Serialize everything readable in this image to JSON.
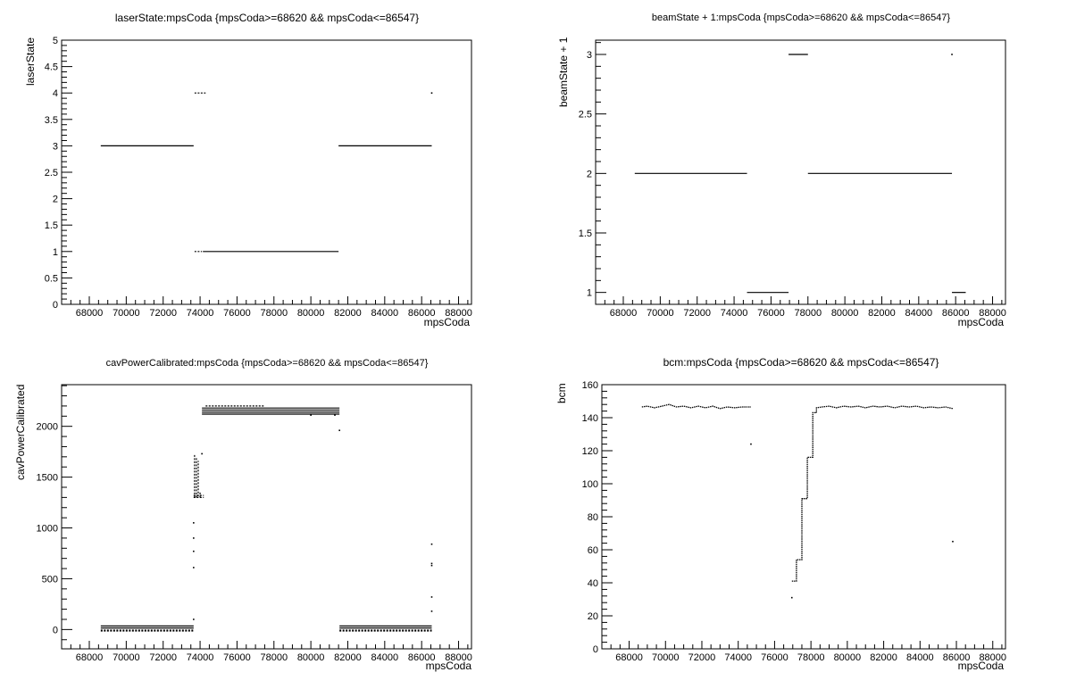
{
  "chart_data": [
    {
      "type": "scatter",
      "title": "laserState:mpsCoda {mpsCoda>=68620 && mpsCoda<=86547}",
      "xlabel": "mpsCoda",
      "ylabel": "laserState",
      "xlim": [
        66500,
        88700
      ],
      "ylim": [
        0,
        5
      ],
      "x_ticks": [
        68000,
        70000,
        72000,
        74000,
        76000,
        78000,
        80000,
        82000,
        84000,
        86000,
        88000
      ],
      "y_ticks": [
        0,
        0.5,
        1,
        1.5,
        2,
        2.5,
        3,
        3.5,
        4,
        4.5,
        5
      ],
      "grid": false,
      "segments": [
        {
          "x0": 68620,
          "x1": 73650,
          "y": 3
        },
        {
          "x0": 73700,
          "x1": 74300,
          "y": 4,
          "dashed": true
        },
        {
          "x0": 73700,
          "x1": 74100,
          "y": 1,
          "dashed": true
        },
        {
          "x0": 74150,
          "x1": 81500,
          "y": 1
        },
        {
          "x0": 81500,
          "x1": 86547,
          "y": 3
        }
      ],
      "points": [
        {
          "x": 86547,
          "y": 4
        }
      ]
    },
    {
      "type": "scatter",
      "title": "beamState + 1:mpsCoda {mpsCoda>=68620 && mpsCoda<=86547}",
      "xlabel": "mpsCoda",
      "ylabel": "beamState + 1",
      "xlim": [
        66500,
        88700
      ],
      "ylim": [
        0.9,
        3.12
      ],
      "x_ticks": [
        68000,
        70000,
        72000,
        74000,
        76000,
        78000,
        80000,
        82000,
        84000,
        86000,
        88000
      ],
      "y_ticks": [
        1,
        1.5,
        2,
        2.5,
        3
      ],
      "grid": false,
      "segments": [
        {
          "x0": 68620,
          "x1": 74700,
          "y": 2
        },
        {
          "x0": 74700,
          "x1": 76950,
          "y": 1
        },
        {
          "x0": 76950,
          "x1": 78000,
          "y": 3
        },
        {
          "x0": 78000,
          "x1": 85800,
          "y": 2
        },
        {
          "x0": 85800,
          "x1": 86547,
          "y": 1
        }
      ],
      "points": [
        {
          "x": 85800,
          "y": 3
        }
      ]
    },
    {
      "type": "scatter",
      "title": "cavPowerCalibrated:mpsCoda {mpsCoda>=68620 && mpsCoda<=86547}",
      "xlabel": "mpsCoda",
      "ylabel": "cavPowerCalibrated",
      "xlim": [
        66500,
        88700
      ],
      "ylim": [
        -190,
        2410
      ],
      "x_ticks": [
        68000,
        70000,
        72000,
        74000,
        76000,
        78000,
        80000,
        82000,
        84000,
        86000,
        88000
      ],
      "y_ticks": [
        0,
        500,
        1000,
        1500,
        2000
      ],
      "grid": false,
      "segments": [
        {
          "x0": 68620,
          "x1": 73650,
          "y": 35
        },
        {
          "x0": 68620,
          "x1": 73650,
          "y": 15
        },
        {
          "x0": 68620,
          "x1": 73650,
          "y": -5,
          "dashed": true
        },
        {
          "x0": 68620,
          "x1": 73650,
          "y": -15,
          "dashed": true
        },
        {
          "x0": 74100,
          "x1": 81550,
          "y": 2180
        },
        {
          "x0": 74100,
          "x1": 81550,
          "y": 2160
        },
        {
          "x0": 74100,
          "x1": 81550,
          "y": 2140
        },
        {
          "x0": 74100,
          "x1": 81550,
          "y": 2120
        },
        {
          "x0": 74300,
          "x1": 77500,
          "y": 2200,
          "dashed": true
        },
        {
          "x0": 81550,
          "x1": 86547,
          "y": 35
        },
        {
          "x0": 81550,
          "x1": 86547,
          "y": 15
        },
        {
          "x0": 81550,
          "x1": 86547,
          "y": -5,
          "dashed": true
        },
        {
          "x0": 81550,
          "x1": 86547,
          "y": -15,
          "dashed": true
        },
        {
          "x0": 73700,
          "x1": 73700,
          "y0": 1300,
          "y1": 1720,
          "dashed": true
        },
        {
          "x0": 73800,
          "x1": 73800,
          "y0": 1300,
          "y1": 1700,
          "dashed": true
        },
        {
          "x0": 73900,
          "x1": 73900,
          "y0": 1310,
          "y1": 1660,
          "dashed": true
        },
        {
          "x0": 74000,
          "x1": 74000,
          "y0": 1300,
          "y1": 1360,
          "dashed": true
        },
        {
          "x0": 73650,
          "x1": 74200,
          "y": 1320,
          "dashed": true
        },
        {
          "x0": 73650,
          "x1": 74200,
          "y": 1300,
          "dashed": true
        }
      ],
      "points": [
        {
          "x": 73650,
          "y": 1050
        },
        {
          "x": 73650,
          "y": 900
        },
        {
          "x": 73650,
          "y": 770
        },
        {
          "x": 73650,
          "y": 610
        },
        {
          "x": 73650,
          "y": 100
        },
        {
          "x": 74100,
          "y": 1730
        },
        {
          "x": 81550,
          "y": 1960
        },
        {
          "x": 80000,
          "y": 2110
        },
        {
          "x": 81300,
          "y": 2110
        },
        {
          "x": 86547,
          "y": 840
        },
        {
          "x": 86547,
          "y": 650
        },
        {
          "x": 86547,
          "y": 630
        },
        {
          "x": 86547,
          "y": 320
        },
        {
          "x": 86547,
          "y": 180
        }
      ]
    },
    {
      "type": "scatter",
      "title": "bcm:mpsCoda {mpsCoda>=68620 && mpsCoda<=86547}",
      "xlabel": "mpsCoda",
      "ylabel": "bcm",
      "xlim": [
        66500,
        88700
      ],
      "ylim": [
        0,
        160
      ],
      "x_ticks": [
        68000,
        70000,
        72000,
        74000,
        76000,
        78000,
        80000,
        82000,
        84000,
        86000,
        88000
      ],
      "y_ticks": [
        0,
        20,
        40,
        60,
        80,
        100,
        120,
        140,
        160
      ],
      "grid": false,
      "series": [
        {
          "x": [
            68700,
            69000,
            69400,
            69800,
            70200,
            70600,
            71000,
            71400,
            71800,
            72200,
            72600,
            73000,
            73400,
            73800,
            74200,
            74700
          ],
          "y": [
            146.5,
            147,
            146,
            147,
            148,
            146.5,
            147,
            146,
            147,
            146,
            147,
            145.5,
            146.5,
            146,
            146.5,
            146.5
          ]
        },
        {
          "x": [
            76950,
            77200,
            77200,
            77500,
            77500,
            77800,
            77800,
            78100,
            78100,
            78300,
            78300,
            78600,
            79000,
            79400,
            79800,
            80200,
            80600,
            81000,
            81400,
            81800,
            82200,
            82600,
            83000,
            83400,
            83800,
            84200,
            84600,
            85000,
            85400,
            85800
          ],
          "y": [
            41,
            41,
            54,
            54,
            91,
            91,
            116,
            116,
            143,
            143,
            146,
            146.5,
            147,
            146,
            147,
            146.5,
            147,
            146,
            147,
            146.5,
            147,
            146,
            147,
            146.5,
            147,
            146,
            146.5,
            146,
            146.5,
            145.5
          ]
        }
      ],
      "points": [
        {
          "x": 74700,
          "y": 124
        },
        {
          "x": 76950,
          "y": 31
        },
        {
          "x": 85800,
          "y": 65
        }
      ]
    }
  ]
}
